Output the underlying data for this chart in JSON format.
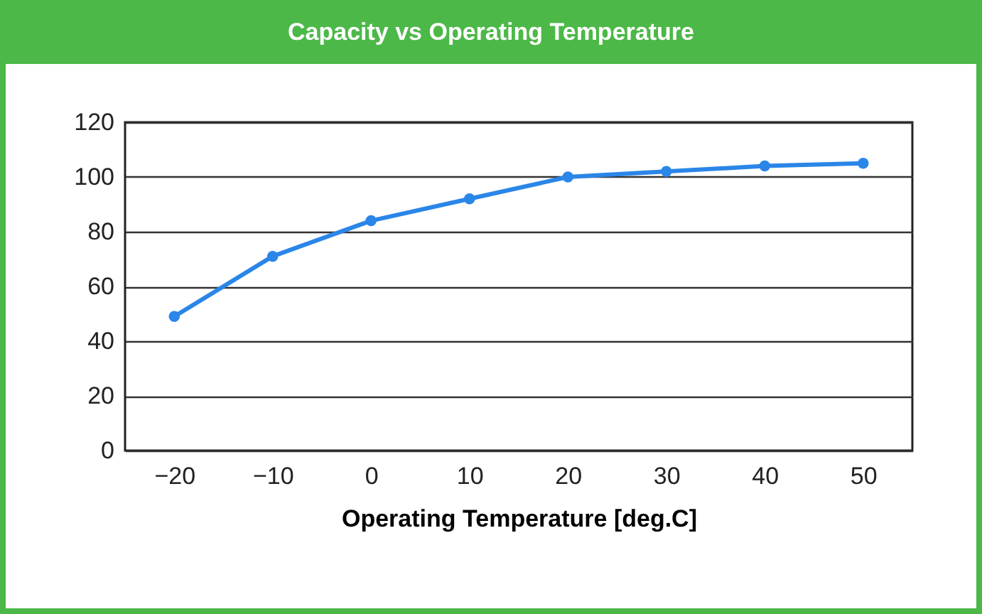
{
  "chart_data": {
    "type": "line",
    "title": "Capacity vs Operating Temperature",
    "xlabel": "Operating Temperature [deg.C]",
    "x": [
      -20,
      -10,
      0,
      10,
      20,
      30,
      40,
      50
    ],
    "series": [
      {
        "color": "#2a86e8",
        "values": [
          49,
          71,
          84,
          92,
          100,
          102,
          104,
          105
        ]
      }
    ],
    "xlim": [
      -25,
      55
    ],
    "xticks": [
      -20,
      -10,
      0,
      10,
      20,
      30,
      40,
      50
    ],
    "ylim": [
      0,
      120
    ],
    "yticks": [
      0,
      20,
      40,
      60,
      80,
      100,
      120
    ],
    "grid": "y",
    "marker": "circle",
    "line_style": "solid",
    "legend": false
  }
}
